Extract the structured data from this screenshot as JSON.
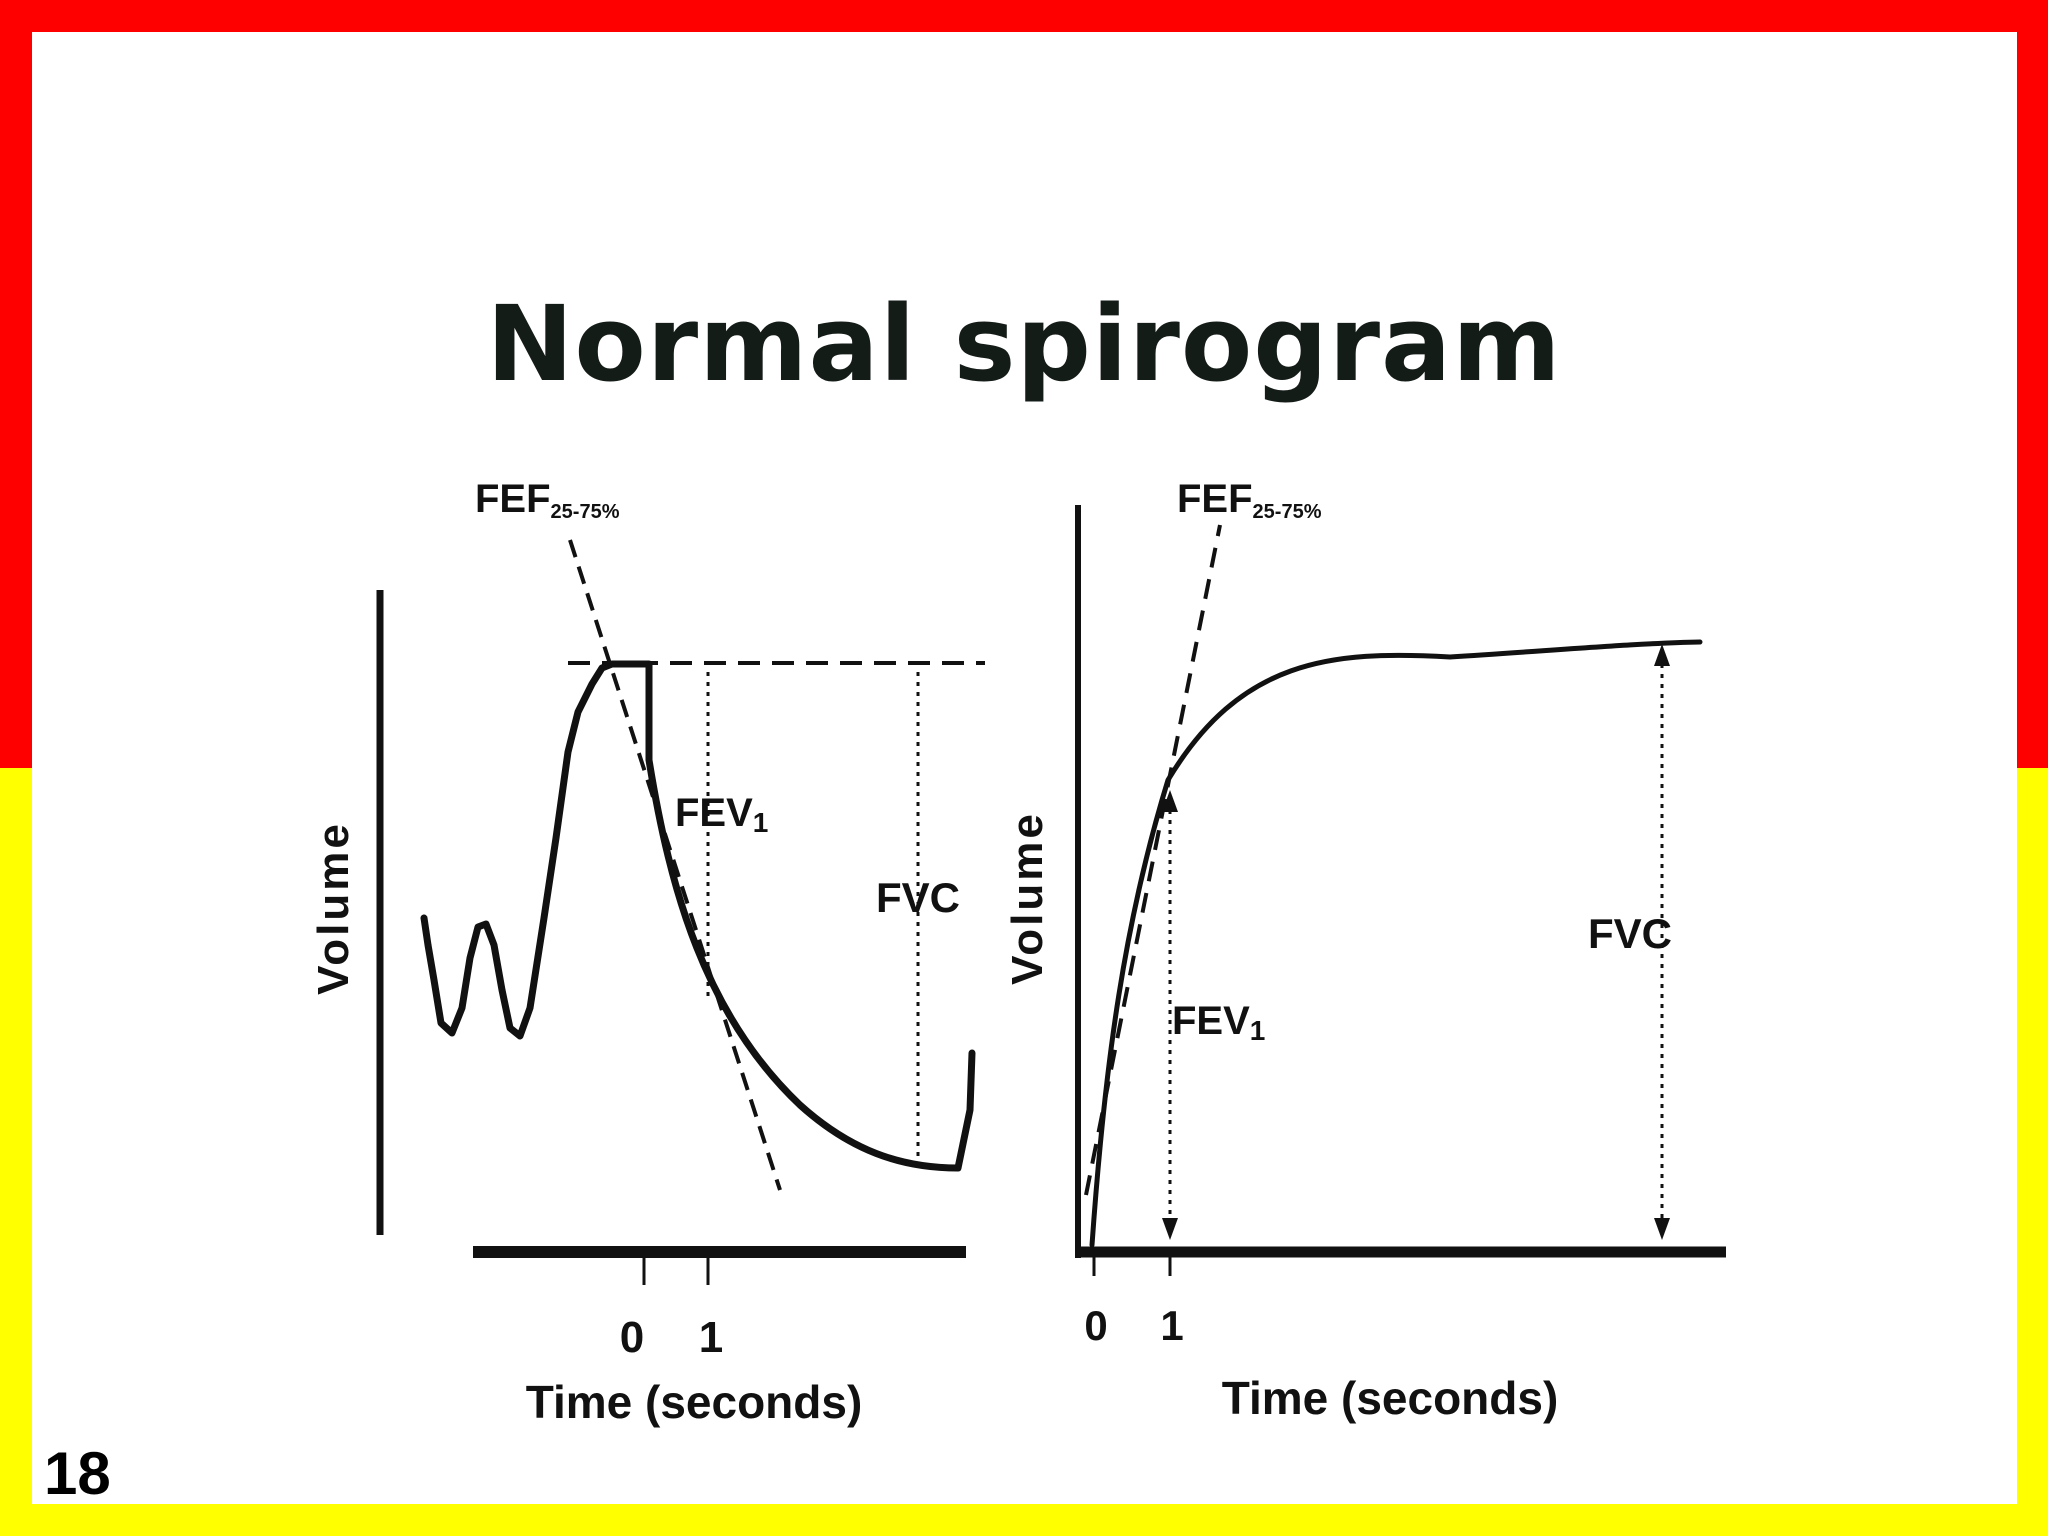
{
  "slide": {
    "title": "Normal spirogram",
    "page_number": "18",
    "colors": {
      "top_frame": "#ff0000",
      "bottom_frame": "#ffff00",
      "background": "#ffffff",
      "ink": "#111111"
    }
  },
  "left_graph": {
    "y_axis_label": "Volume",
    "x_axis_label": "Time (seconds)",
    "x_tick_labels": [
      "0",
      "1"
    ],
    "fef_label": {
      "main": "FEF",
      "sub": "25-75%"
    },
    "fev_label": {
      "main": "FEV",
      "sub": "1"
    },
    "fvc_label": "FVC"
  },
  "right_graph": {
    "y_axis_label": "Volume",
    "x_axis_label": "Time (seconds)",
    "x_tick_labels": [
      "0",
      "1"
    ],
    "fef_label": {
      "main": "FEF",
      "sub": "25-75%"
    },
    "fev_label": {
      "main": "FEV",
      "sub": "1"
    },
    "fvc_label": "FVC"
  }
}
